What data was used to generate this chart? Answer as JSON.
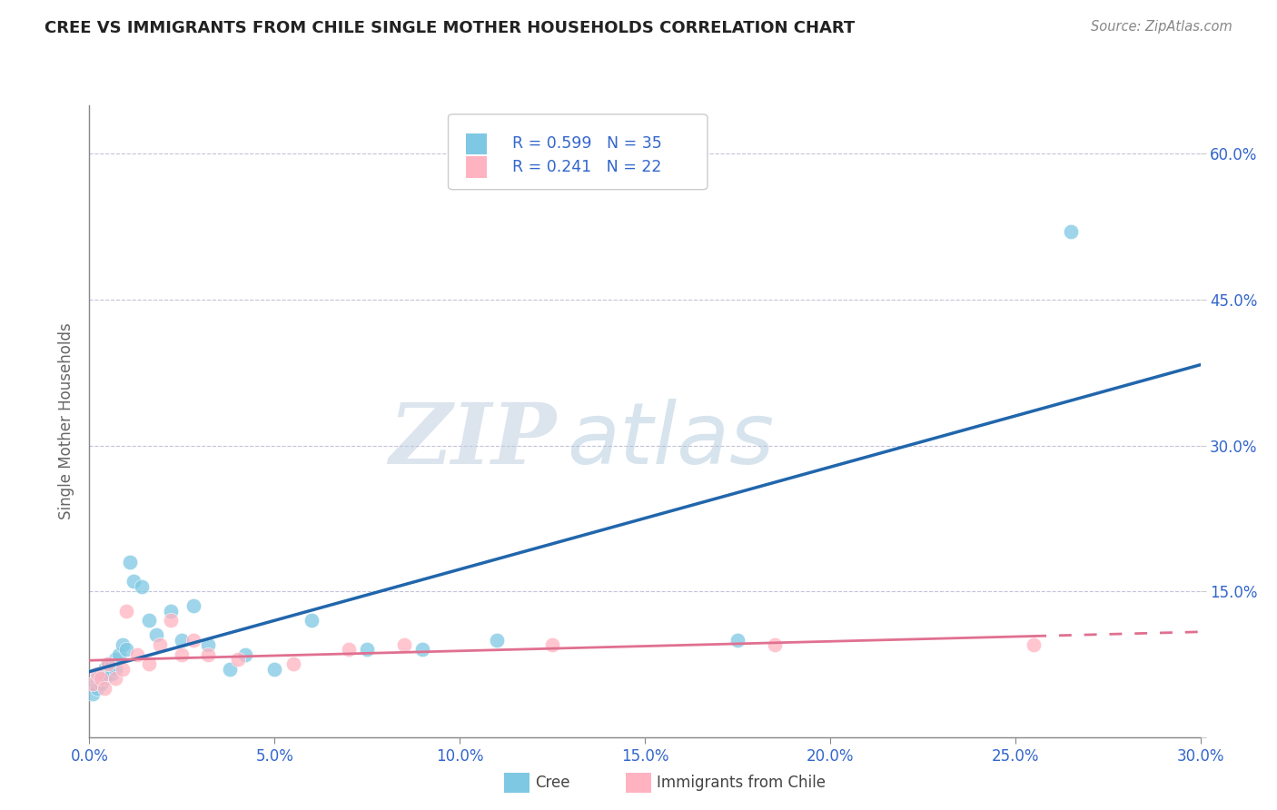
{
  "title": "CREE VS IMMIGRANTS FROM CHILE SINGLE MOTHER HOUSEHOLDS CORRELATION CHART",
  "source": "Source: ZipAtlas.com",
  "ylabel": "Single Mother Households",
  "xlim": [
    0.0,
    0.3
  ],
  "ylim": [
    0.0,
    0.65
  ],
  "yticks": [
    0.0,
    0.15,
    0.3,
    0.45,
    0.6
  ],
  "xticks": [
    0.0,
    0.05,
    0.1,
    0.15,
    0.2,
    0.25,
    0.3
  ],
  "xtick_labels": [
    "0.0%",
    "5.0%",
    "10.0%",
    "15.0%",
    "20.0%",
    "25.0%",
    "30.0%"
  ],
  "ytick_labels": [
    "",
    "15.0%",
    "30.0%",
    "45.0%",
    "60.0%"
  ],
  "ytick_labels_right": [
    "",
    "15.0%",
    "30.0%",
    "45.0%",
    "60.0%"
  ],
  "cree_color": "#7ec8e3",
  "chile_color": "#ffb3c1",
  "cree_line_color": "#2166ac",
  "chile_line_color": "#e07090",
  "R_cree": 0.599,
  "N_cree": 35,
  "R_chile": 0.241,
  "N_chile": 22,
  "watermark_zip": "ZIP",
  "watermark_atlas": "atlas",
  "background_color": "#ffffff",
  "cree_x": [
    0.001,
    0.001,
    0.002,
    0.002,
    0.003,
    0.003,
    0.004,
    0.004,
    0.005,
    0.005,
    0.006,
    0.006,
    0.007,
    0.007,
    0.008,
    0.009,
    0.01,
    0.011,
    0.012,
    0.014,
    0.016,
    0.018,
    0.022,
    0.025,
    0.028,
    0.032,
    0.038,
    0.042,
    0.05,
    0.06,
    0.075,
    0.09,
    0.11,
    0.175,
    0.265
  ],
  "cree_y": [
    0.055,
    0.045,
    0.06,
    0.05,
    0.065,
    0.055,
    0.07,
    0.06,
    0.075,
    0.065,
    0.075,
    0.065,
    0.08,
    0.07,
    0.085,
    0.095,
    0.09,
    0.18,
    0.16,
    0.155,
    0.12,
    0.105,
    0.13,
    0.1,
    0.135,
    0.095,
    0.07,
    0.085,
    0.07,
    0.12,
    0.09,
    0.09,
    0.1,
    0.1,
    0.52
  ],
  "chile_x": [
    0.001,
    0.002,
    0.003,
    0.004,
    0.005,
    0.007,
    0.009,
    0.01,
    0.013,
    0.016,
    0.019,
    0.022,
    0.025,
    0.028,
    0.032,
    0.04,
    0.055,
    0.07,
    0.085,
    0.125,
    0.185,
    0.255
  ],
  "chile_y": [
    0.055,
    0.065,
    0.06,
    0.05,
    0.075,
    0.06,
    0.07,
    0.13,
    0.085,
    0.075,
    0.095,
    0.12,
    0.085,
    0.1,
    0.085,
    0.08,
    0.075,
    0.09,
    0.095,
    0.095,
    0.095,
    0.095
  ]
}
